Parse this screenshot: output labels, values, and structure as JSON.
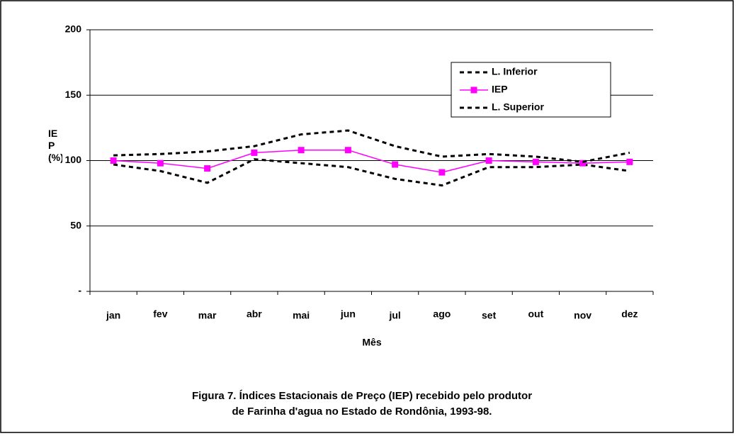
{
  "chart_data": {
    "type": "line",
    "caption": [
      "Figura 7. Índices Estacionais de Preço (IEP)  recebido pelo produtor",
      "de Farinha d'agua no Estado de Rondônia, 1993-98."
    ],
    "x_label": "Mês",
    "y_label": "IEP (%)",
    "categories": [
      "jan",
      "fev",
      "mar",
      "abr",
      "mai",
      "jun",
      "jul",
      "ago",
      "set",
      "out",
      "nov",
      "dez"
    ],
    "series": [
      {
        "name": "L. Inferior",
        "color": "#000000",
        "style": "dashed",
        "values": [
          97,
          92,
          83,
          101,
          98,
          95,
          86,
          81,
          95,
          95,
          97,
          92
        ]
      },
      {
        "name": "IEP",
        "color": "#ff00ff",
        "style": "solid",
        "marker": "square",
        "values": [
          100,
          98,
          94,
          106,
          108,
          108,
          97,
          91,
          100,
          99,
          98,
          99
        ]
      },
      {
        "name": "L. Superior",
        "color": "#000000",
        "style": "dashed",
        "values": [
          104,
          105,
          107,
          111,
          120,
          123,
          111,
          103,
          105,
          103,
          99,
          106
        ]
      }
    ],
    "ylim": [
      0,
      200
    ],
    "yticks": [
      {
        "value": 0,
        "label": "-"
      },
      50,
      100,
      150,
      200
    ],
    "grid": true,
    "legend": "upper right"
  }
}
